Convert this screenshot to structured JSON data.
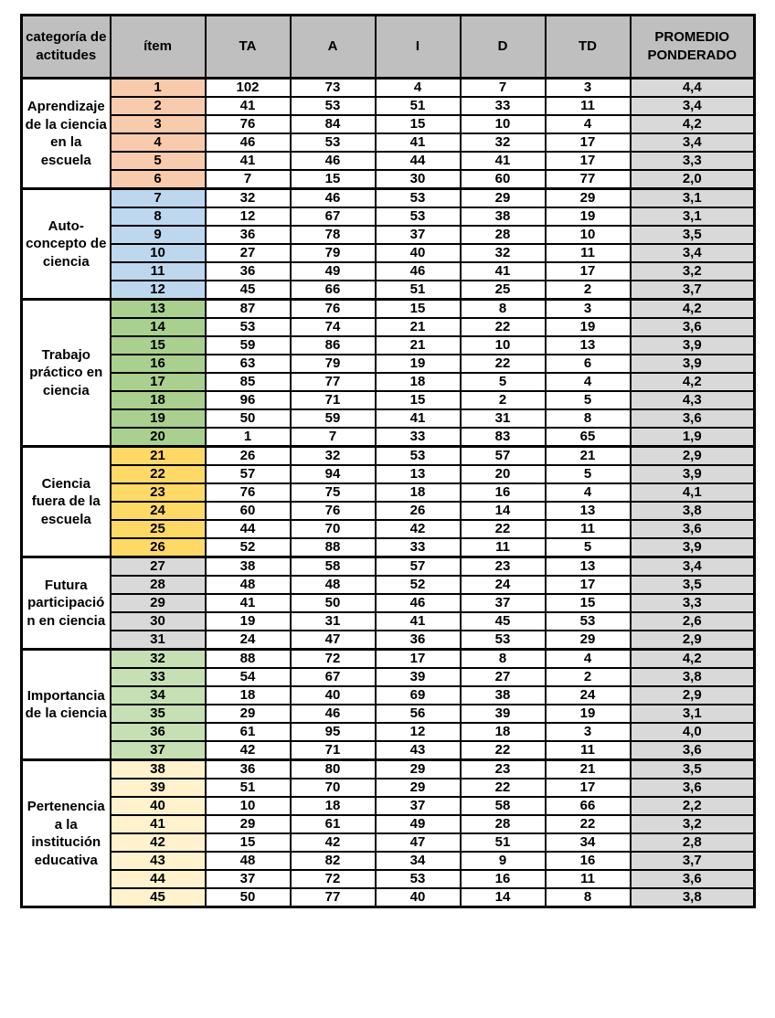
{
  "colors": {
    "header_bg": "#BFBFBF",
    "promedio_bg": "#D9D9D9",
    "border": "#000000",
    "group_aprendizaje": "#F8CBAD",
    "group_autoconcepto": "#BDD7EE",
    "group_trabajo": "#A9D08E",
    "group_fuera": "#FFD966",
    "group_futura": "#D9D9D9",
    "group_importancia": "#C6E0B4",
    "group_pertenencia": "#FFF2CC"
  },
  "chart_data": {
    "type": "table",
    "columns": [
      "categoría de actitudes",
      "ítem",
      "TA",
      "A",
      "I",
      "D",
      "TD",
      "PROMEDIO PONDERADO"
    ],
    "groups": [
      {
        "category": "Aprendizaje de la ciencia en la escuela",
        "color": "#F8CBAD",
        "rows": [
          {
            "item": "1",
            "TA": "102",
            "A": "73",
            "I": "4",
            "D": "7",
            "TD": "3",
            "promedio": "4,4"
          },
          {
            "item": "2",
            "TA": "41",
            "A": "53",
            "I": "51",
            "D": "33",
            "TD": "11",
            "promedio": "3,4"
          },
          {
            "item": "3",
            "TA": "76",
            "A": "84",
            "I": "15",
            "D": "10",
            "TD": "4",
            "promedio": "4,2"
          },
          {
            "item": "4",
            "TA": "46",
            "A": "53",
            "I": "41",
            "D": "32",
            "TD": "17",
            "promedio": "3,4"
          },
          {
            "item": "5",
            "TA": "41",
            "A": "46",
            "I": "44",
            "D": "41",
            "TD": "17",
            "promedio": "3,3"
          },
          {
            "item": "6",
            "TA": "7",
            "A": "15",
            "I": "30",
            "D": "60",
            "TD": "77",
            "promedio": "2,0"
          }
        ]
      },
      {
        "category": "Auto-concepto de ciencia",
        "color": "#BDD7EE",
        "rows": [
          {
            "item": "7",
            "TA": "32",
            "A": "46",
            "I": "53",
            "D": "29",
            "TD": "29",
            "promedio": "3,1"
          },
          {
            "item": "8",
            "TA": "12",
            "A": "67",
            "I": "53",
            "D": "38",
            "TD": "19",
            "promedio": "3,1"
          },
          {
            "item": "9",
            "TA": "36",
            "A": "78",
            "I": "37",
            "D": "28",
            "TD": "10",
            "promedio": "3,5"
          },
          {
            "item": "10",
            "TA": "27",
            "A": "79",
            "I": "40",
            "D": "32",
            "TD": "11",
            "promedio": "3,4"
          },
          {
            "item": "11",
            "TA": "36",
            "A": "49",
            "I": "46",
            "D": "41",
            "TD": "17",
            "promedio": "3,2"
          },
          {
            "item": "12",
            "TA": "45",
            "A": "66",
            "I": "51",
            "D": "25",
            "TD": "2",
            "promedio": "3,7"
          }
        ]
      },
      {
        "category": "Trabajo práctico en ciencia",
        "color": "#A9D08E",
        "rows": [
          {
            "item": "13",
            "TA": "87",
            "A": "76",
            "I": "15",
            "D": "8",
            "TD": "3",
            "promedio": "4,2"
          },
          {
            "item": "14",
            "TA": "53",
            "A": "74",
            "I": "21",
            "D": "22",
            "TD": "19",
            "promedio": "3,6"
          },
          {
            "item": "15",
            "TA": "59",
            "A": "86",
            "I": "21",
            "D": "10",
            "TD": "13",
            "promedio": "3,9"
          },
          {
            "item": "16",
            "TA": "63",
            "A": "79",
            "I": "19",
            "D": "22",
            "TD": "6",
            "promedio": "3,9"
          },
          {
            "item": "17",
            "TA": "85",
            "A": "77",
            "I": "18",
            "D": "5",
            "TD": "4",
            "promedio": "4,2"
          },
          {
            "item": "18",
            "TA": "96",
            "A": "71",
            "I": "15",
            "D": "2",
            "TD": "5",
            "promedio": "4,3"
          },
          {
            "item": "19",
            "TA": "50",
            "A": "59",
            "I": "41",
            "D": "31",
            "TD": "8",
            "promedio": "3,6"
          },
          {
            "item": "20",
            "TA": "1",
            "A": "7",
            "I": "33",
            "D": "83",
            "TD": "65",
            "promedio": "1,9"
          }
        ]
      },
      {
        "category": "Ciencia fuera de la escuela",
        "color": "#FFD966",
        "rows": [
          {
            "item": "21",
            "TA": "26",
            "A": "32",
            "I": "53",
            "D": "57",
            "TD": "21",
            "promedio": "2,9"
          },
          {
            "item": "22",
            "TA": "57",
            "A": "94",
            "I": "13",
            "D": "20",
            "TD": "5",
            "promedio": "3,9"
          },
          {
            "item": "23",
            "TA": "76",
            "A": "75",
            "I": "18",
            "D": "16",
            "TD": "4",
            "promedio": "4,1"
          },
          {
            "item": "24",
            "TA": "60",
            "A": "76",
            "I": "26",
            "D": "14",
            "TD": "13",
            "promedio": "3,8"
          },
          {
            "item": "25",
            "TA": "44",
            "A": "70",
            "I": "42",
            "D": "22",
            "TD": "11",
            "promedio": "3,6"
          },
          {
            "item": "26",
            "TA": "52",
            "A": "88",
            "I": "33",
            "D": "11",
            "TD": "5",
            "promedio": "3,9"
          }
        ]
      },
      {
        "category": "Futura participación en ciencia",
        "color": "#D9D9D9",
        "rows": [
          {
            "item": "27",
            "TA": "38",
            "A": "58",
            "I": "57",
            "D": "23",
            "TD": "13",
            "promedio": "3,4"
          },
          {
            "item": "28",
            "TA": "48",
            "A": "48",
            "I": "52",
            "D": "24",
            "TD": "17",
            "promedio": "3,5"
          },
          {
            "item": "29",
            "TA": "41",
            "A": "50",
            "I": "46",
            "D": "37",
            "TD": "15",
            "promedio": "3,3"
          },
          {
            "item": "30",
            "TA": "19",
            "A": "31",
            "I": "41",
            "D": "45",
            "TD": "53",
            "promedio": "2,6"
          },
          {
            "item": "31",
            "TA": "24",
            "A": "47",
            "I": "36",
            "D": "53",
            "TD": "29",
            "promedio": "2,9"
          }
        ]
      },
      {
        "category": "Importancia de la ciencia",
        "color": "#C6E0B4",
        "rows": [
          {
            "item": "32",
            "TA": "88",
            "A": "72",
            "I": "17",
            "D": "8",
            "TD": "4",
            "promedio": "4,2"
          },
          {
            "item": "33",
            "TA": "54",
            "A": "67",
            "I": "39",
            "D": "27",
            "TD": "2",
            "promedio": "3,8"
          },
          {
            "item": "34",
            "TA": "18",
            "A": "40",
            "I": "69",
            "D": "38",
            "TD": "24",
            "promedio": "2,9"
          },
          {
            "item": "35",
            "TA": "29",
            "A": "46",
            "I": "56",
            "D": "39",
            "TD": "19",
            "promedio": "3,1"
          },
          {
            "item": "36",
            "TA": "61",
            "A": "95",
            "I": "12",
            "D": "18",
            "TD": "3",
            "promedio": "4,0"
          },
          {
            "item": "37",
            "TA": "42",
            "A": "71",
            "I": "43",
            "D": "22",
            "TD": "11",
            "promedio": "3,6"
          }
        ]
      },
      {
        "category": "Pertenencia a la institución educativa",
        "color": "#FFF2CC",
        "rows": [
          {
            "item": "38",
            "TA": "36",
            "A": "80",
            "I": "29",
            "D": "23",
            "TD": "21",
            "promedio": "3,5"
          },
          {
            "item": "39",
            "TA": "51",
            "A": "70",
            "I": "29",
            "D": "22",
            "TD": "17",
            "promedio": "3,6"
          },
          {
            "item": "40",
            "TA": "10",
            "A": "18",
            "I": "37",
            "D": "58",
            "TD": "66",
            "promedio": "2,2"
          },
          {
            "item": "41",
            "TA": "29",
            "A": "61",
            "I": "49",
            "D": "28",
            "TD": "22",
            "promedio": "3,2"
          },
          {
            "item": "42",
            "TA": "15",
            "A": "42",
            "I": "47",
            "D": "51",
            "TD": "34",
            "promedio": "2,8"
          },
          {
            "item": "43",
            "TA": "48",
            "A": "82",
            "I": "34",
            "D": "9",
            "TD": "16",
            "promedio": "3,7"
          },
          {
            "item": "44",
            "TA": "37",
            "A": "72",
            "I": "53",
            "D": "16",
            "TD": "11",
            "promedio": "3,6"
          },
          {
            "item": "45",
            "TA": "50",
            "A": "77",
            "I": "40",
            "D": "14",
            "TD": "8",
            "promedio": "3,8"
          }
        ]
      }
    ]
  }
}
